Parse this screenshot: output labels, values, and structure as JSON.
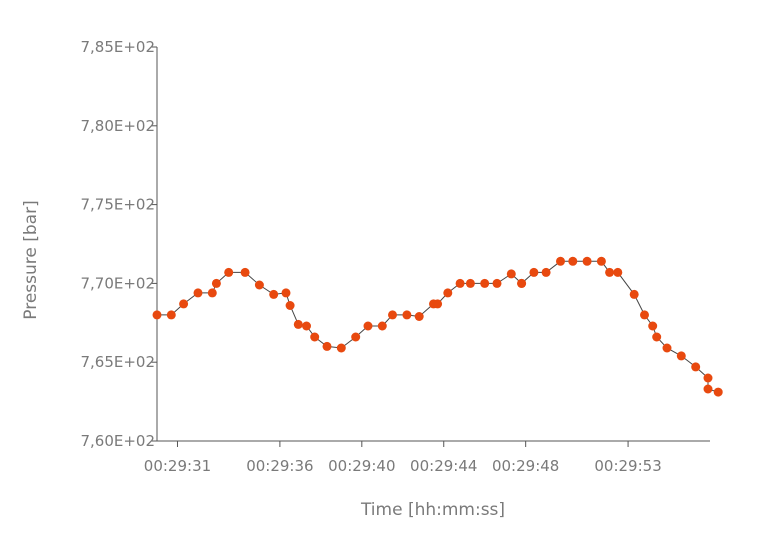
{
  "chart_data": {
    "type": "line",
    "xlabel": "Time [hh:mm:ss]",
    "ylabel": "Pressure [bar]",
    "ylim": [
      760,
      785
    ],
    "xlim": [
      "00:29:30",
      "00:29:57"
    ],
    "x_ticks": [
      "00:29:31",
      "00:29:36",
      "00:29:40",
      "00:29:44",
      "00:29:48",
      "00:29:53"
    ],
    "y_ticks": [
      "7,60E+02",
      "7,65E+02",
      "7,70E+02",
      "7,75E+02",
      "7,80E+02",
      "7,85E+02"
    ],
    "y_tick_values": [
      760,
      765,
      770,
      775,
      780,
      785
    ],
    "grid": false,
    "legend": "none",
    "marker_color": "#e8490f",
    "line_color": "#444444",
    "axis_color": "#555555",
    "text_color": "#7a7a7a",
    "series": [
      {
        "x": [
          "00:29:30.0",
          "00:29:30.7",
          "00:29:31.3",
          "00:29:32.0",
          "00:29:32.7",
          "00:29:32.9",
          "00:29:33.5",
          "00:29:34.3",
          "00:29:35.0",
          "00:29:35.7",
          "00:29:36.3",
          "00:29:36.5",
          "00:29:36.9",
          "00:29:37.3",
          "00:29:37.7",
          "00:29:38.3",
          "00:29:39.0",
          "00:29:39.7",
          "00:29:40.3",
          "00:29:41.0",
          "00:29:41.5",
          "00:29:42.2",
          "00:29:42.8",
          "00:29:43.5",
          "00:29:43.7",
          "00:29:44.2",
          "00:29:44.8",
          "00:29:45.3",
          "00:29:46.0",
          "00:29:46.6",
          "00:29:47.3",
          "00:29:47.8",
          "00:29:47.8",
          "00:29:48.4",
          "00:29:49.0",
          "00:29:49.7",
          "00:29:50.3",
          "00:29:51.0",
          "00:29:51.7",
          "00:29:52.1",
          "00:29:52.5",
          "00:29:53.3",
          "00:29:53.8",
          "00:29:54.2",
          "00:29:54.4",
          "00:29:54.9",
          "00:29:55.6",
          "00:29:56.3",
          "00:29:56.9",
          "00:29:56.9",
          "00:29:57.4"
        ],
        "y": [
          768.0,
          768.0,
          768.7,
          769.4,
          769.4,
          770.0,
          770.7,
          770.7,
          769.9,
          769.3,
          769.4,
          768.6,
          767.4,
          767.3,
          766.6,
          766.0,
          765.9,
          766.6,
          767.3,
          767.3,
          768.0,
          768.0,
          767.9,
          768.7,
          768.7,
          769.4,
          770.0,
          770.0,
          770.0,
          770.0,
          770.6,
          770.0,
          770.0,
          770.7,
          770.7,
          771.4,
          771.4,
          771.4,
          771.4,
          770.7,
          770.7,
          769.3,
          768.0,
          767.3,
          766.6,
          765.9,
          765.4,
          764.7,
          764.0,
          763.3,
          763.1
        ]
      }
    ]
  }
}
